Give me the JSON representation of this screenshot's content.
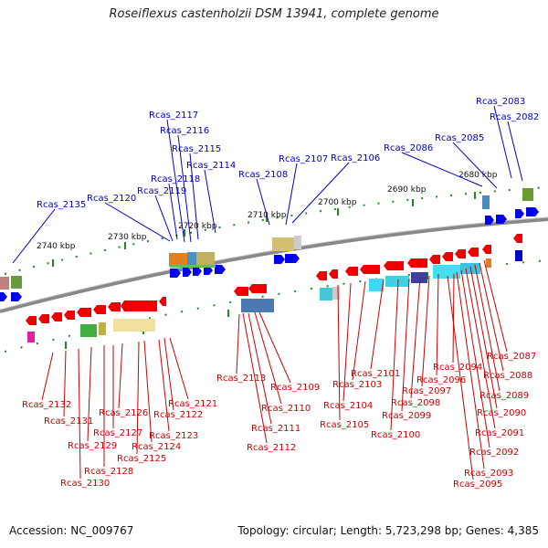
{
  "title": "Roseiflexus castenholzii DSM 13941, complete genome",
  "footer": {
    "accession": "Accession: NC_009767",
    "summary": "Topology: circular; Length: 5,723,298 bp; Genes: 4,385"
  },
  "colors": {
    "forward_label": "#0000cc",
    "reverse_label": "#cc0000",
    "forward_gene": "#0000ee",
    "reverse_gene": "#ee0000",
    "backbone": "#888888",
    "ticks": "#228822"
  },
  "scale_labels": [
    "2740 kbp",
    "2730 kbp",
    "2720 kbp",
    "2710 kbp",
    "2700 kbp",
    "2690 kbp",
    "2680 kbp"
  ],
  "forward_labels": [
    "Rcas_2083",
    "Rcas_2082",
    "Rcas_2085",
    "Rcas_2086",
    "Rcas_2106",
    "Rcas_2107",
    "Rcas_2108",
    "Rcas_2117",
    "Rcas_2116",
    "Rcas_2115",
    "Rcas_2114",
    "Rcas_2118",
    "Rcas_2119",
    "Rcas_2120",
    "Rcas_2135"
  ],
  "reverse_labels": [
    "Rcas_2087",
    "Rcas_2088",
    "Rcas_2089",
    "Rcas_2090",
    "Rcas_2091",
    "Rcas_2092",
    "Rcas_2093",
    "Rcas_2094",
    "Rcas_2095",
    "Rcas_2096",
    "Rcas_2097",
    "Rcas_2098",
    "Rcas_2099",
    "Rcas_2100",
    "Rcas_2101",
    "Rcas_2103",
    "Rcas_2104",
    "Rcas_2105",
    "Rcas_2109",
    "Rcas_2110",
    "Rcas_2111",
    "Rcas_2112",
    "Rcas_2113",
    "Rcas_2121",
    "Rcas_2122",
    "Rcas_2123",
    "Rcas_2124",
    "Rcas_2125",
    "Rcas_2126",
    "Rcas_2127",
    "Rcas_2128",
    "Rcas_2129",
    "Rcas_2130",
    "Rcas_2131",
    "Rcas_2132"
  ]
}
